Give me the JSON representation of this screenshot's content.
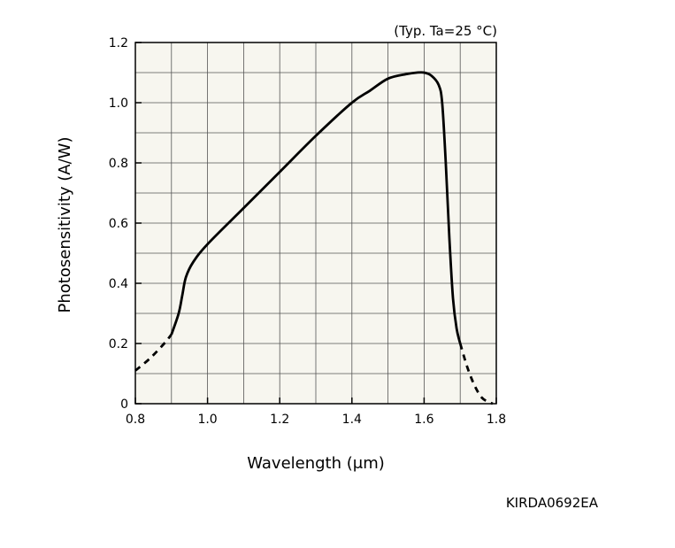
{
  "chart_data": {
    "type": "line",
    "title": "",
    "annotation": "(Typ. Ta=25 °C)",
    "xlabel": "Wavelength (μm)",
    "ylabel": "Photosensitivity (A/W)",
    "xlim": [
      0.8,
      1.8
    ],
    "ylim": [
      0,
      1.2
    ],
    "x_ticks": [
      0.8,
      1.0,
      1.2,
      1.4,
      1.6,
      1.8
    ],
    "x_tick_labels": [
      "0.8",
      "1.0",
      "1.2",
      "1.4",
      "1.6",
      "1.8"
    ],
    "y_ticks": [
      0,
      0.2,
      0.4,
      0.6,
      0.8,
      1.0,
      1.2
    ],
    "y_tick_labels": [
      "0",
      "0.2",
      "0.4",
      "0.6",
      "0.8",
      "1.0",
      "1.2"
    ],
    "grid": true,
    "grid_x_step": 0.1,
    "grid_y_step": 0.1,
    "plot_background": "#f7f6ef",
    "line_color": "#000000",
    "series": [
      {
        "style": "dashed",
        "x": [
          0.8,
          0.84,
          0.88,
          0.9
        ],
        "y": [
          0.11,
          0.15,
          0.2,
          0.23
        ]
      },
      {
        "style": "solid",
        "x": [
          0.9,
          0.92,
          0.93,
          0.94,
          0.96,
          1.0,
          1.1,
          1.2,
          1.3,
          1.4,
          1.45,
          1.5,
          1.55,
          1.58,
          1.6,
          1.62,
          1.64,
          1.65,
          1.66,
          1.67,
          1.68,
          1.69,
          1.7
        ],
        "y": [
          0.23,
          0.3,
          0.36,
          0.42,
          0.47,
          0.53,
          0.65,
          0.77,
          0.89,
          1.0,
          1.04,
          1.08,
          1.095,
          1.1,
          1.1,
          1.09,
          1.06,
          1.0,
          0.8,
          0.55,
          0.35,
          0.25,
          0.2
        ]
      },
      {
        "style": "dashed",
        "x": [
          1.7,
          1.72,
          1.74,
          1.76,
          1.78,
          1.79
        ],
        "y": [
          0.2,
          0.12,
          0.06,
          0.02,
          0.005,
          0.0
        ]
      }
    ],
    "figure_code": "KIRDA0692EA"
  }
}
